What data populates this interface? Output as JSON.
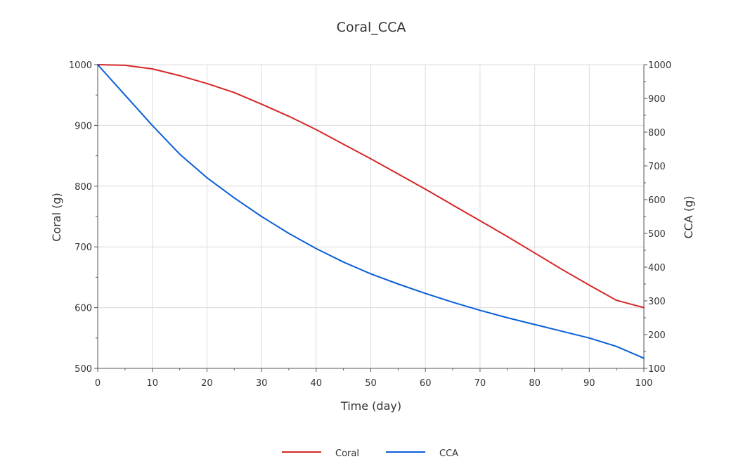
{
  "chart_data": {
    "type": "line",
    "title": "Coral_CCA",
    "xlabel": "Time (day)",
    "ylabel_left": "Coral (g)",
    "ylabel_right": "CCA (g)",
    "xlim": [
      0,
      100
    ],
    "ylim_left": [
      500,
      1000
    ],
    "ylim_right": [
      100,
      1000
    ],
    "x_ticks": [
      0,
      10,
      20,
      30,
      40,
      50,
      60,
      70,
      80,
      90,
      100
    ],
    "y_left_ticks": [
      500,
      600,
      700,
      800,
      900,
      1000
    ],
    "y_right_ticks": [
      100,
      200,
      300,
      400,
      500,
      600,
      700,
      800,
      900,
      1000
    ],
    "grid": true,
    "legend_position": "bottom-center",
    "x": [
      0,
      5,
      10,
      15,
      20,
      25,
      30,
      35,
      40,
      45,
      50,
      55,
      60,
      65,
      70,
      75,
      80,
      85,
      90,
      95,
      100
    ],
    "series": [
      {
        "name": "Coral",
        "axis": "left",
        "color": "#d62728",
        "values": [
          1000,
          999,
          993,
          982,
          969,
          954,
          935,
          915,
          893,
          869,
          845,
          820,
          795,
          769,
          743,
          717,
          690,
          663,
          637,
          612,
          600
        ]
      },
      {
        "name": "CCA",
        "axis": "right",
        "color": "#0a5fd6",
        "values": [
          1000,
          910,
          820,
          735,
          665,
          605,
          550,
          500,
          455,
          415,
          380,
          350,
          322,
          296,
          272,
          250,
          230,
          210,
          190,
          165,
          130
        ]
      }
    ]
  }
}
